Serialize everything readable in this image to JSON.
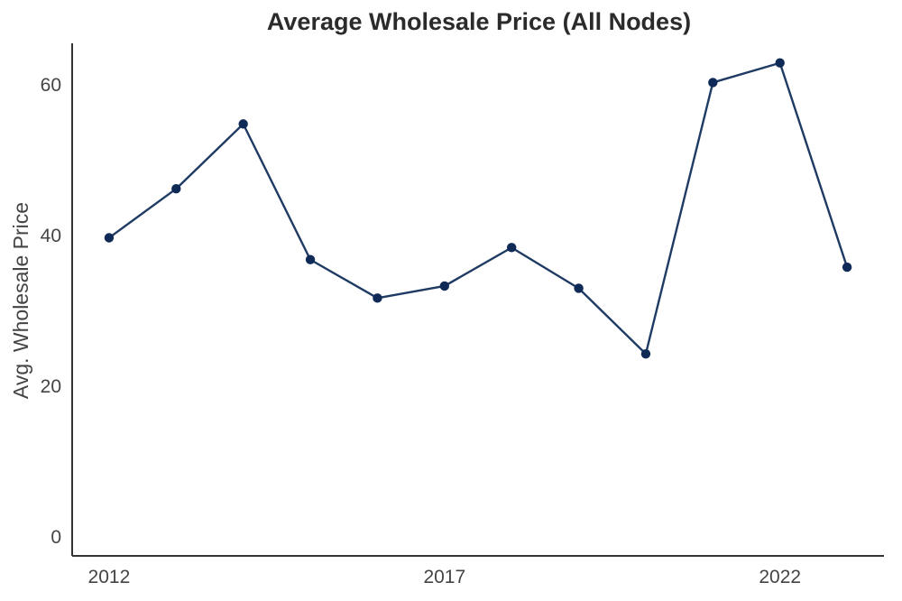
{
  "chart_data": {
    "type": "line",
    "title": "Average Wholesale Price (All Nodes)",
    "xlabel": "",
    "ylabel": "Avg. Wholesale Price",
    "x": [
      2012,
      2013,
      2014,
      2015,
      2016,
      2017,
      2018,
      2019,
      2020,
      2021,
      2022,
      2023
    ],
    "series": [
      {
        "values": [
          39.7,
          46.2,
          54.8,
          36.8,
          31.7,
          33.3,
          38.4,
          33.0,
          24.3,
          60.3,
          62.9,
          35.8
        ]
      }
    ],
    "xlim": [
      2011.45,
      2023.55
    ],
    "ylim": [
      -2.5,
      65.5
    ],
    "xticks": [
      2012,
      2017,
      2022
    ],
    "yticks": [
      0,
      20,
      40,
      60
    ],
    "grid": false,
    "legend": "none",
    "colors": {
      "line": "#1f3b63",
      "marker": "#0f2a57",
      "axis": "#333333"
    }
  }
}
